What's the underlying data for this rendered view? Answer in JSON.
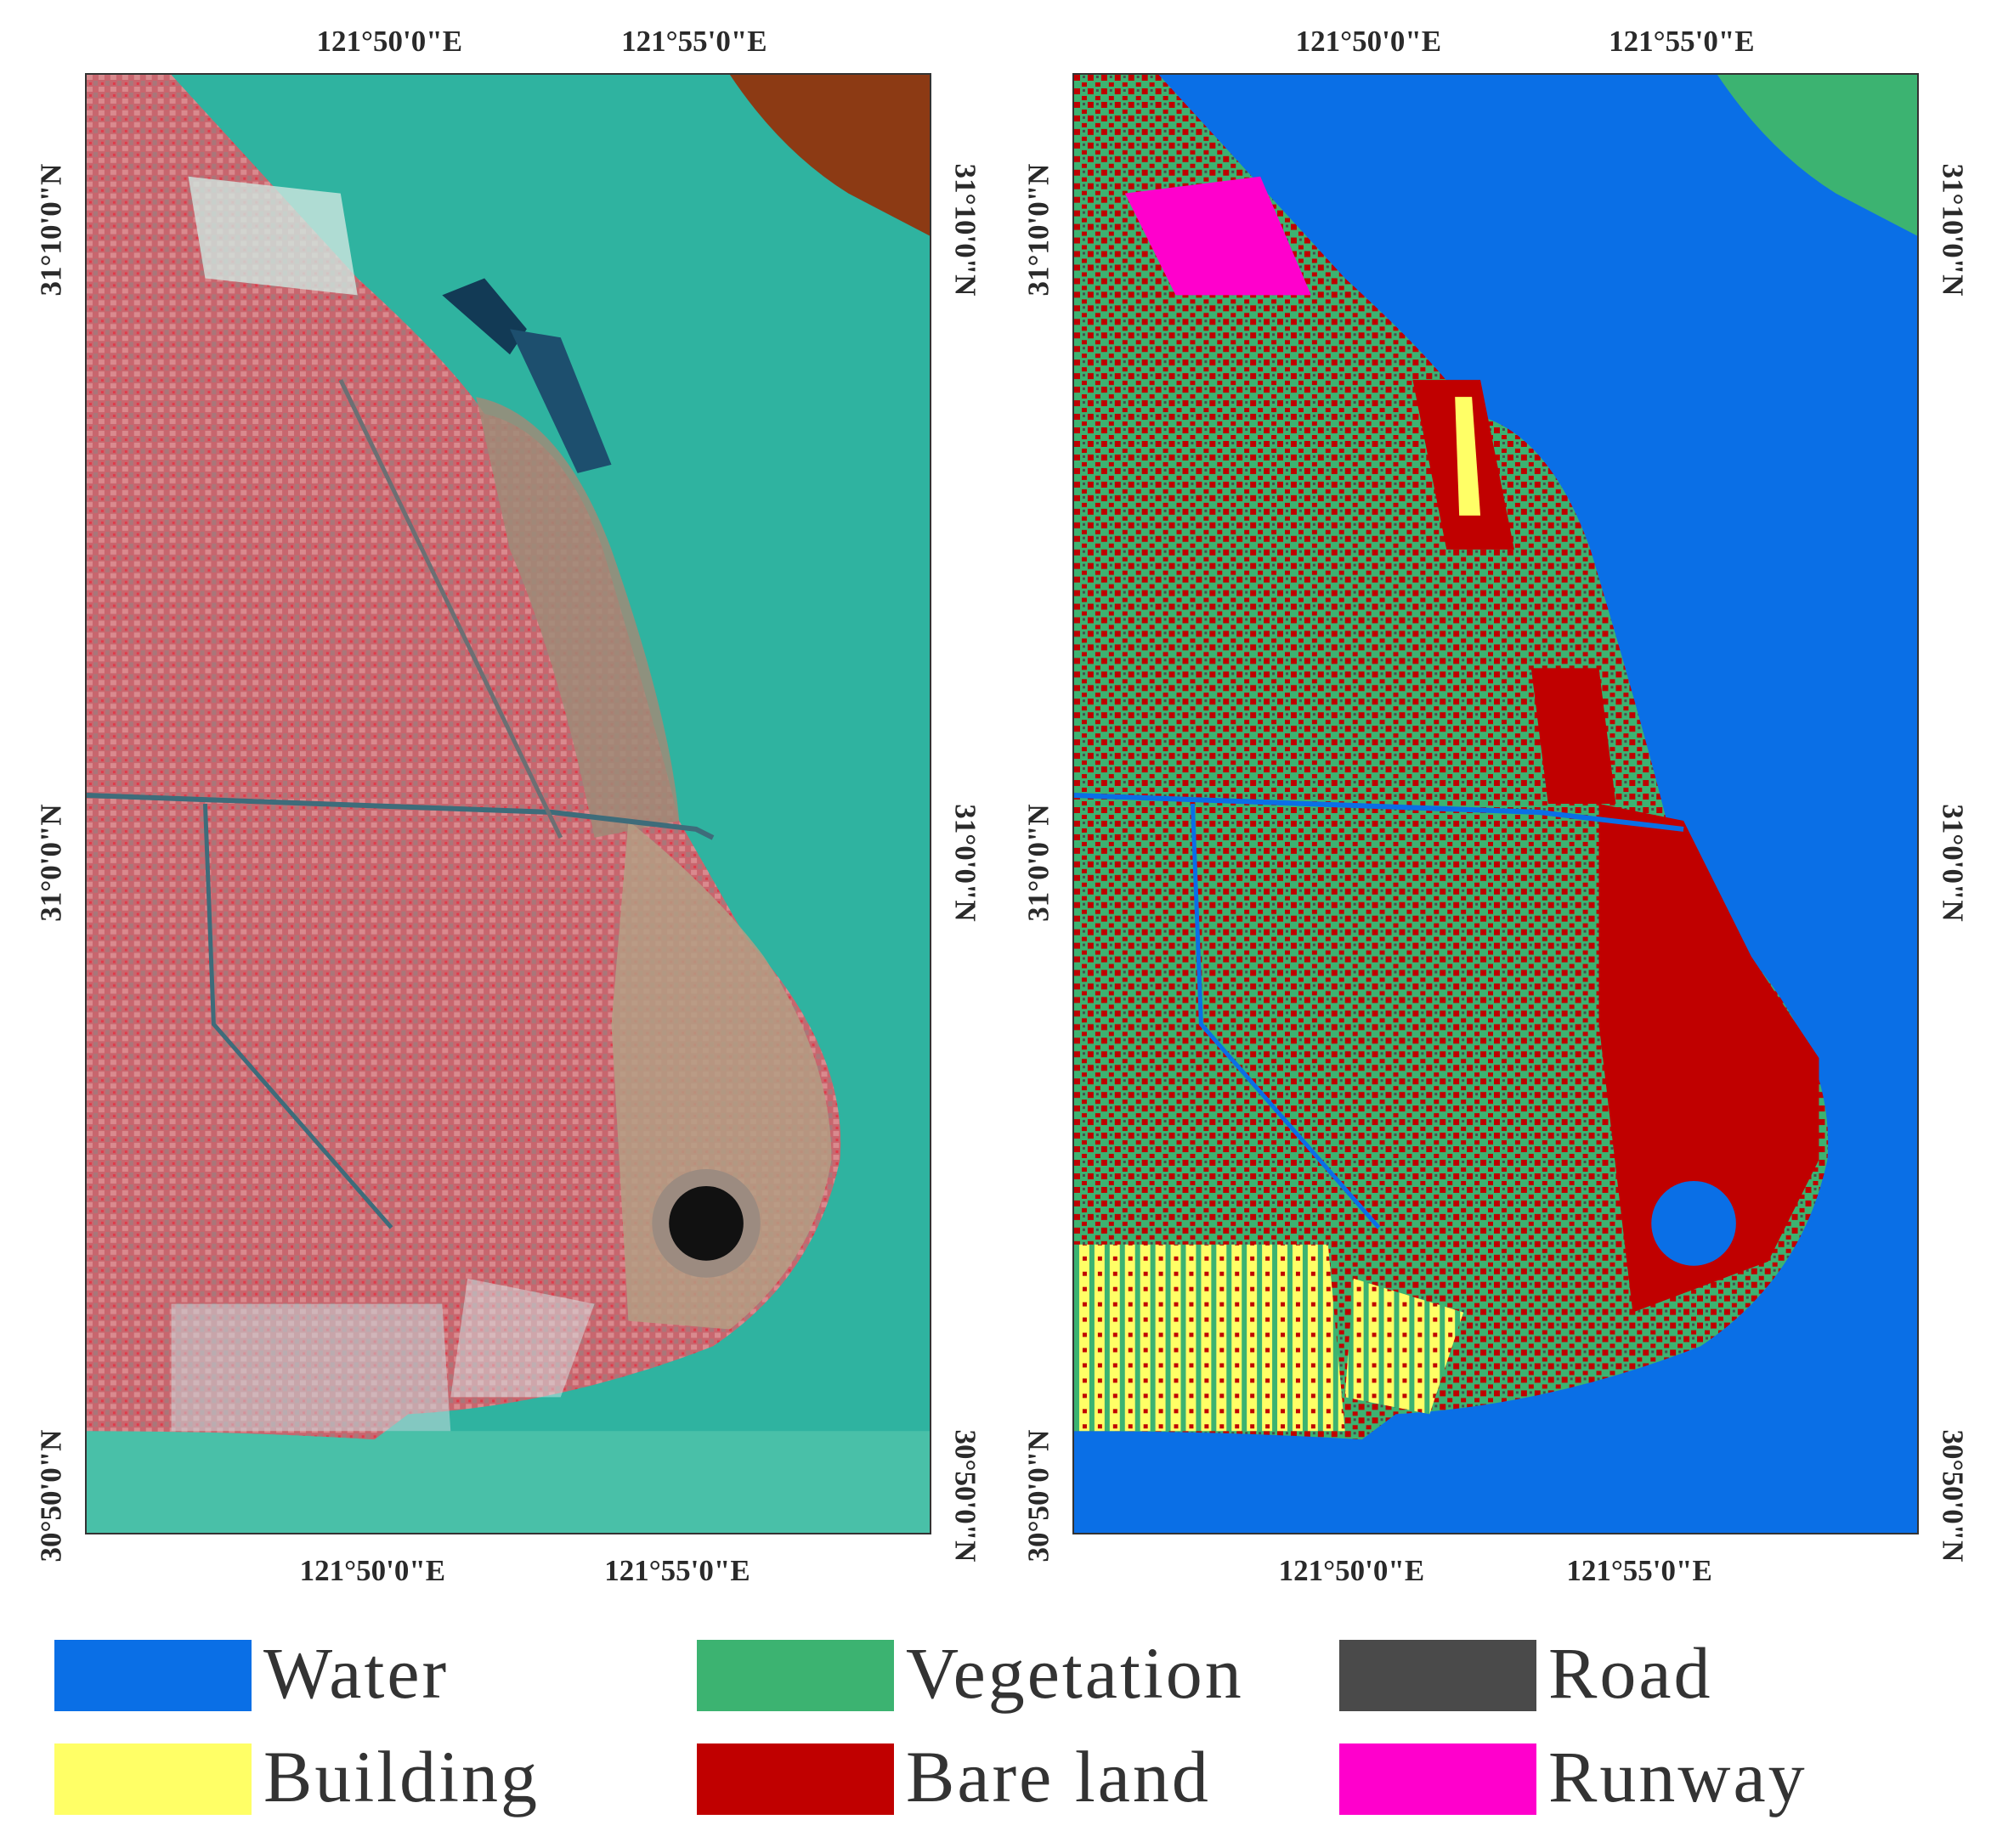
{
  "maps": {
    "left": {
      "top_ticks": [
        "121°50'0\"E",
        "121°55'0\"E"
      ],
      "bottom_ticks": [
        "121°50'0\"E",
        "121°55'0\"E"
      ],
      "left_ticks": [
        "31°10'0\"N",
        "31°0'0\"N",
        "30°50'0\"N"
      ],
      "right_ticks": [
        "31°10'0\"N",
        "31°0'0\"N",
        "30°50'0\"N"
      ]
    },
    "right": {
      "top_ticks": [
        "121°50'0\"E",
        "121°55'0\"E"
      ],
      "bottom_ticks": [
        "121°50'0\"E",
        "121°55'0\"E"
      ],
      "left_ticks": [
        "31°10'0\"N",
        "31°0'0\"N",
        "30°50'0\"N"
      ],
      "right_ticks": [
        "31°10'0\"N",
        "31°0'0\"N",
        "30°50'0\"N"
      ]
    }
  },
  "legend": [
    {
      "label": "Water",
      "color": "#0a6fe6"
    },
    {
      "label": "Vegetation",
      "color": "#3cb371"
    },
    {
      "label": "Road",
      "color": "#4a4a4a"
    },
    {
      "label": "Building",
      "color": "#ffff66"
    },
    {
      "label": "Bare land",
      "color": "#c00000"
    },
    {
      "label": "Runway",
      "color": "#ff00cc"
    }
  ]
}
